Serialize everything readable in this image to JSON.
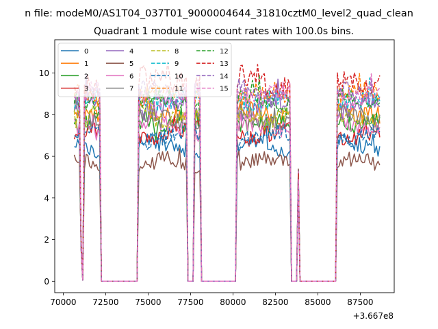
{
  "chart_data": {
    "type": "line",
    "suptitle": "n file: modeM0/AS1T04_037T01_9000004644_31810cztM0_level2_quad_clean",
    "title": "Quadrant 1 module wise count rates with 100.0s bins.",
    "xlabel": "",
    "ylabel": "",
    "x_offset_label": "+3.667e8",
    "xlim": [
      69500,
      89500
    ],
    "ylim": [
      -0.55,
      11.6
    ],
    "xticks": [
      70000,
      72500,
      75000,
      77500,
      80000,
      82500,
      85000,
      87500
    ],
    "xtick_labels": [
      "70000",
      "72500",
      "75000",
      "77500",
      "80000",
      "82500",
      "85000",
      "87500"
    ],
    "yticks": [
      0,
      2,
      4,
      6,
      8,
      10
    ],
    "ytick_labels": [
      "0",
      "2",
      "4",
      "6",
      "8",
      "10"
    ],
    "legend_position": "upper-left",
    "segments": [
      {
        "start": 70650,
        "end": 71050,
        "level": "high"
      },
      {
        "start": 71050,
        "end": 71250,
        "level": "dip"
      },
      {
        "start": 71250,
        "end": 72250,
        "level": "high"
      },
      {
        "start": 72250,
        "end": 74450,
        "level": "zero"
      },
      {
        "start": 74450,
        "end": 77350,
        "level": "high"
      },
      {
        "start": 77350,
        "end": 77750,
        "level": "zero"
      },
      {
        "start": 77750,
        "end": 78150,
        "level": "high"
      },
      {
        "start": 78150,
        "end": 80250,
        "level": "zero"
      },
      {
        "start": 80250,
        "end": 83450,
        "level": "high"
      },
      {
        "start": 83450,
        "end": 83850,
        "level": "zero"
      },
      {
        "start": 83850,
        "end": 83950,
        "level": "spike"
      },
      {
        "start": 83950,
        "end": 86150,
        "level": "zero"
      },
      {
        "start": 86150,
        "end": 88750,
        "level": "high"
      }
    ],
    "series": [
      {
        "name": "0",
        "color": "#1f77b4",
        "dash": "solid",
        "mean": 6.5,
        "noise": 0.35
      },
      {
        "name": "1",
        "color": "#ff7f0e",
        "dash": "solid",
        "mean": 8.2,
        "noise": 0.45
      },
      {
        "name": "2",
        "color": "#2ca02c",
        "dash": "solid",
        "mean": 7.7,
        "noise": 0.45
      },
      {
        "name": "3",
        "color": "#d62728",
        "dash": "solid",
        "mean": 7.1,
        "noise": 0.4
      },
      {
        "name": "4",
        "color": "#9467bd",
        "dash": "solid",
        "mean": 8.3,
        "noise": 0.45
      },
      {
        "name": "5",
        "color": "#8c564b",
        "dash": "solid",
        "mean": 5.6,
        "noise": 0.4
      },
      {
        "name": "6",
        "color": "#e377c2",
        "dash": "solid",
        "mean": 7.4,
        "noise": 0.45
      },
      {
        "name": "7",
        "color": "#7f7f7f",
        "dash": "solid",
        "mean": 7.9,
        "noise": 0.45
      },
      {
        "name": "8",
        "color": "#bcbd22",
        "dash": "dashed",
        "mean": 8.0,
        "noise": 0.45
      },
      {
        "name": "9",
        "color": "#17becf",
        "dash": "dashed",
        "mean": 8.8,
        "noise": 0.45
      },
      {
        "name": "10",
        "color": "#1f77b4",
        "dash": "dashed",
        "mean": 6.9,
        "noise": 0.4
      },
      {
        "name": "11",
        "color": "#ff7f0e",
        "dash": "dashed",
        "mean": 8.9,
        "noise": 0.45
      },
      {
        "name": "12",
        "color": "#2ca02c",
        "dash": "dashed",
        "mean": 8.6,
        "noise": 0.45
      },
      {
        "name": "13",
        "color": "#d62728",
        "dash": "dashed",
        "mean": 9.6,
        "noise": 0.55
      },
      {
        "name": "14",
        "color": "#9467bd",
        "dash": "dashed",
        "mean": 9.2,
        "noise": 0.5
      },
      {
        "name": "15",
        "color": "#e377c2",
        "dash": "dashed",
        "mean": 9.0,
        "noise": 0.5
      }
    ],
    "bin_seconds": 100
  }
}
